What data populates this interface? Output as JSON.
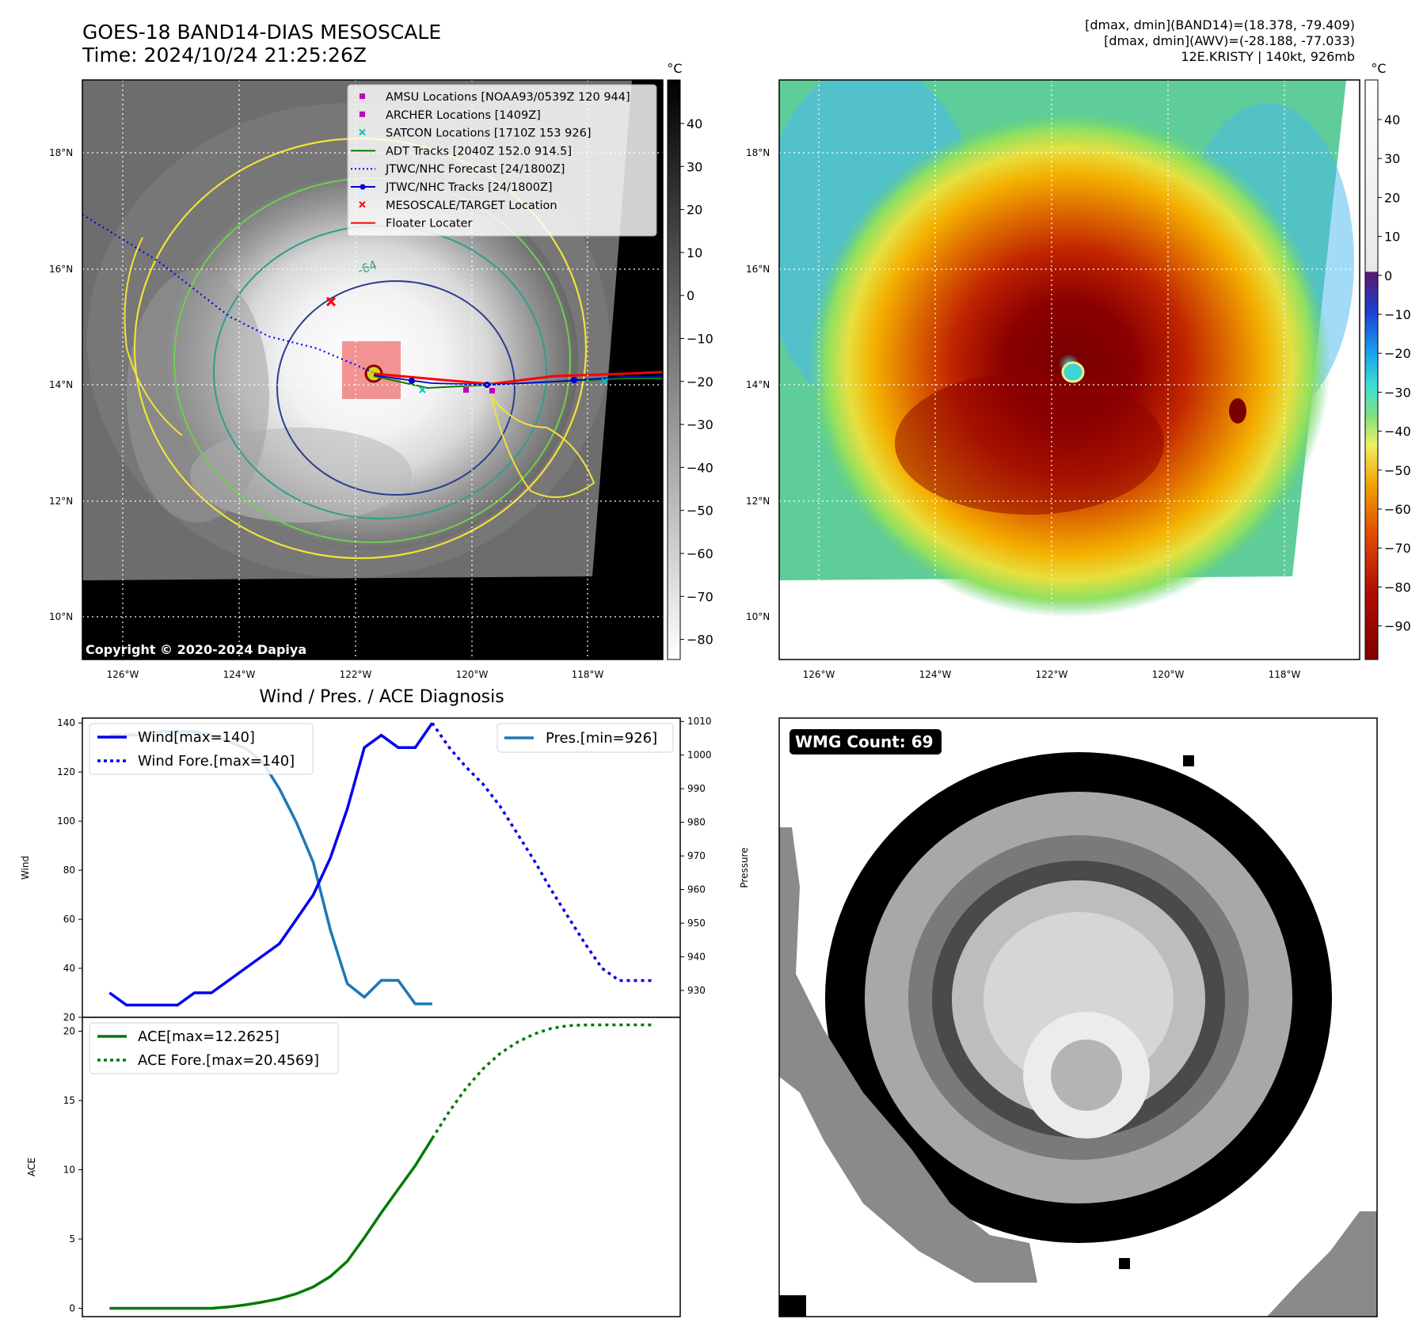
{
  "header": {
    "title_line1": "GOES-18 BAND14-DIAS MESOSCALE",
    "title_line2": "Time: 2024/10/24 21:25:26Z",
    "stats_line1": "[dmax, dmin](BAND14)=(18.378, -79.409)",
    "stats_line2": "[dmax, dmin](AWV)=(-28.188, -77.033)",
    "stats_line3": "12E.KRISTY | 140kt, 926mb"
  },
  "map": {
    "lat_labels": [
      "18°N",
      "16°N",
      "14°N",
      "12°N",
      "10°N"
    ],
    "lon_labels": [
      "126°W",
      "124°W",
      "122°W",
      "120°W",
      "118°W"
    ],
    "copyright": "Copyright © 2020-2024 Dapiya",
    "contour_label": "-64",
    "legend": [
      {
        "label": "AMSU Locations [NOAA93/0539Z 120 944]",
        "color": "#c000c0",
        "marker": "square"
      },
      {
        "label": "ARCHER Locations [1409Z]",
        "color": "#c000c0",
        "marker": "square"
      },
      {
        "label": "SATCON Locations [1710Z 153 926]",
        "color": "#00c0c0",
        "marker": "x"
      },
      {
        "label": "ADT Tracks [2040Z 152.0 914.5]",
        "color": "#008000",
        "marker": "line"
      },
      {
        "label": "JTWC/NHC Forecast [24/1800Z]",
        "color": "#0000ff",
        "marker": "dotted"
      },
      {
        "label": "JTWC/NHC Tracks [24/1800Z]",
        "color": "#0000cc",
        "marker": "line-dot"
      },
      {
        "label": "MESOSCALE/TARGET Location",
        "color": "#ff0000",
        "marker": "x"
      },
      {
        "label": "Floater Locater",
        "color": "#ff0000",
        "marker": "line"
      }
    ]
  },
  "colorbar_gray": {
    "unit": "°C",
    "ticks": [
      "40",
      "30",
      "20",
      "10",
      "0",
      "−10",
      "−20",
      "−30",
      "−40",
      "−50",
      "−60",
      "−70",
      "−80"
    ]
  },
  "colorbar_color": {
    "unit": "°C",
    "ticks": [
      "40",
      "30",
      "20",
      "10",
      "0",
      "−10",
      "−20",
      "−30",
      "−40",
      "−50",
      "−60",
      "−70",
      "−80",
      "−90"
    ]
  },
  "diagnosis": {
    "title": "Wind / Pres. / ACE Diagnosis",
    "wind_axis_label": "Wind",
    "pressure_axis_label": "Pressure",
    "ace_axis_label": "ACE",
    "wind_ticks": [
      "140",
      "120",
      "100",
      "80",
      "60",
      "40",
      "20"
    ],
    "pressure_ticks": [
      "1010",
      "1000",
      "990",
      "980",
      "970",
      "960",
      "950",
      "940",
      "930"
    ],
    "ace_ticks": [
      "20",
      "15",
      "10",
      "5",
      "0"
    ]
  },
  "wmg": {
    "label": "WMG Count: 69"
  },
  "colors": {
    "wind": "#0000ee",
    "pressure": "#1f77b4",
    "ace": "#007a00",
    "floater_box": "#f08080",
    "contour_yellow": "#f2e23a",
    "contour_teal": "#2e9e8e",
    "contour_navy": "#2c3e8c"
  },
  "chart_data": [
    {
      "type": "line",
      "title": "Wind / Pres. / ACE Diagnosis",
      "ylabel": "Wind",
      "ylim": [
        20,
        142
      ],
      "y2label": "Pressure",
      "y2lim": [
        922,
        1011
      ],
      "series": [
        {
          "name": "Wind[max=140]",
          "axis": "wind",
          "style": "solid",
          "x": [
            0,
            1,
            2,
            3,
            4,
            5,
            6,
            7,
            8,
            9,
            10,
            11,
            12,
            13,
            14,
            15,
            16,
            17,
            18,
            19
          ],
          "values": [
            30,
            25,
            25,
            25,
            25,
            30,
            30,
            35,
            40,
            45,
            50,
            60,
            70,
            85,
            105,
            130,
            135,
            130,
            130,
            140
          ]
        },
        {
          "name": "Wind Fore.[max=140]",
          "axis": "wind",
          "style": "dotted",
          "x": [
            19,
            20,
            21,
            22,
            23,
            24,
            25,
            26,
            27,
            28,
            29,
            30,
            31,
            32
          ],
          "values": [
            140,
            130,
            122,
            115,
            106,
            95,
            84,
            72,
            61,
            50,
            40,
            35,
            35,
            35
          ]
        },
        {
          "name": "Pres.[min=926]",
          "axis": "pressure",
          "style": "solid",
          "x": [
            0,
            1,
            2,
            3,
            4,
            5,
            6,
            7,
            8,
            9,
            10,
            11,
            12,
            13,
            14,
            15,
            16,
            17,
            18,
            19
          ],
          "values": [
            1006,
            1006,
            1006,
            1007,
            1007,
            1007,
            1006,
            1004,
            1002,
            998,
            990,
            980,
            968,
            948,
            932,
            928,
            933,
            933,
            926,
            926
          ]
        }
      ]
    },
    {
      "type": "line",
      "ylabel": "ACE",
      "ylim": [
        -0.6,
        21
      ],
      "series": [
        {
          "name": "ACE[max=12.2625]",
          "style": "solid",
          "x": [
            0,
            1,
            2,
            3,
            4,
            5,
            6,
            7,
            8,
            9,
            10,
            11,
            12,
            13,
            14,
            15,
            16,
            17,
            18,
            19
          ],
          "values": [
            0,
            0,
            0,
            0,
            0,
            0,
            0,
            0.1,
            0.25,
            0.45,
            0.7,
            1.05,
            1.55,
            2.3,
            3.4,
            5.1,
            6.9,
            8.6,
            10.3,
            12.26
          ]
        },
        {
          "name": "ACE Fore.[max=20.4569]",
          "style": "dotted",
          "x": [
            19,
            20,
            21,
            22,
            23,
            24,
            25,
            26,
            27,
            28,
            29,
            30,
            31,
            32
          ],
          "values": [
            12.26,
            14.2,
            15.9,
            17.3,
            18.4,
            19.2,
            19.8,
            20.2,
            20.4,
            20.45,
            20.46,
            20.46,
            20.46,
            20.46
          ]
        }
      ]
    }
  ]
}
